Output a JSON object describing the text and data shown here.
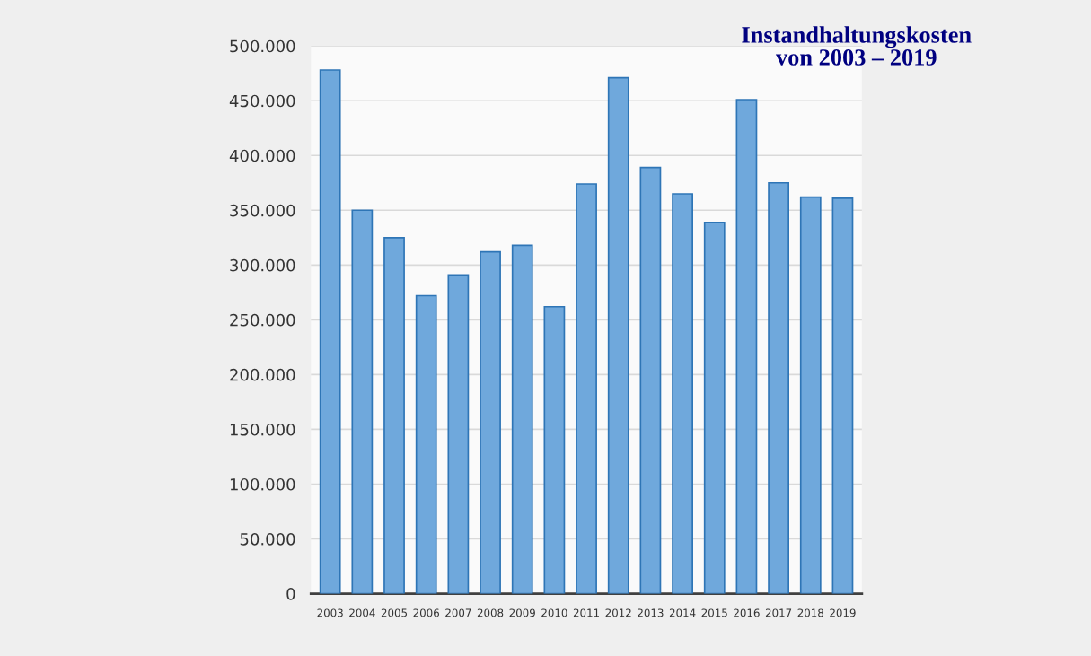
{
  "chart_data": {
    "type": "bar",
    "title": "Instandhaltungskosten\nvon 2003 – 2019",
    "categories": [
      "2003",
      "2004",
      "2005",
      "2006",
      "2007",
      "2008",
      "2009",
      "2010",
      "2011",
      "2012",
      "2013",
      "2014",
      "2015",
      "2016",
      "2017",
      "2018",
      "2019"
    ],
    "values": [
      478000,
      350000,
      325000,
      272000,
      291000,
      312000,
      318000,
      262000,
      374000,
      471000,
      389000,
      365000,
      339000,
      451000,
      375000,
      362000,
      361000
    ],
    "color": "#6fa8dc",
    "ylim": [
      0,
      500000
    ],
    "yticks": [
      {
        "value": 0,
        "label": "0"
      },
      {
        "value": 50000,
        "label": "50.000"
      },
      {
        "value": 100000,
        "label": "100.000"
      },
      {
        "value": 150000,
        "label": "150.000"
      },
      {
        "value": 200000,
        "label": "200.000"
      },
      {
        "value": 250000,
        "label": "250.000"
      },
      {
        "value": 300000,
        "label": "300.000"
      },
      {
        "value": 350000,
        "label": "350.000"
      },
      {
        "value": 400000,
        "label": "400.000"
      },
      {
        "value": 450000,
        "label": "450.000"
      },
      {
        "value": 500000,
        "label": "500.000"
      }
    ],
    "grid": "y"
  }
}
